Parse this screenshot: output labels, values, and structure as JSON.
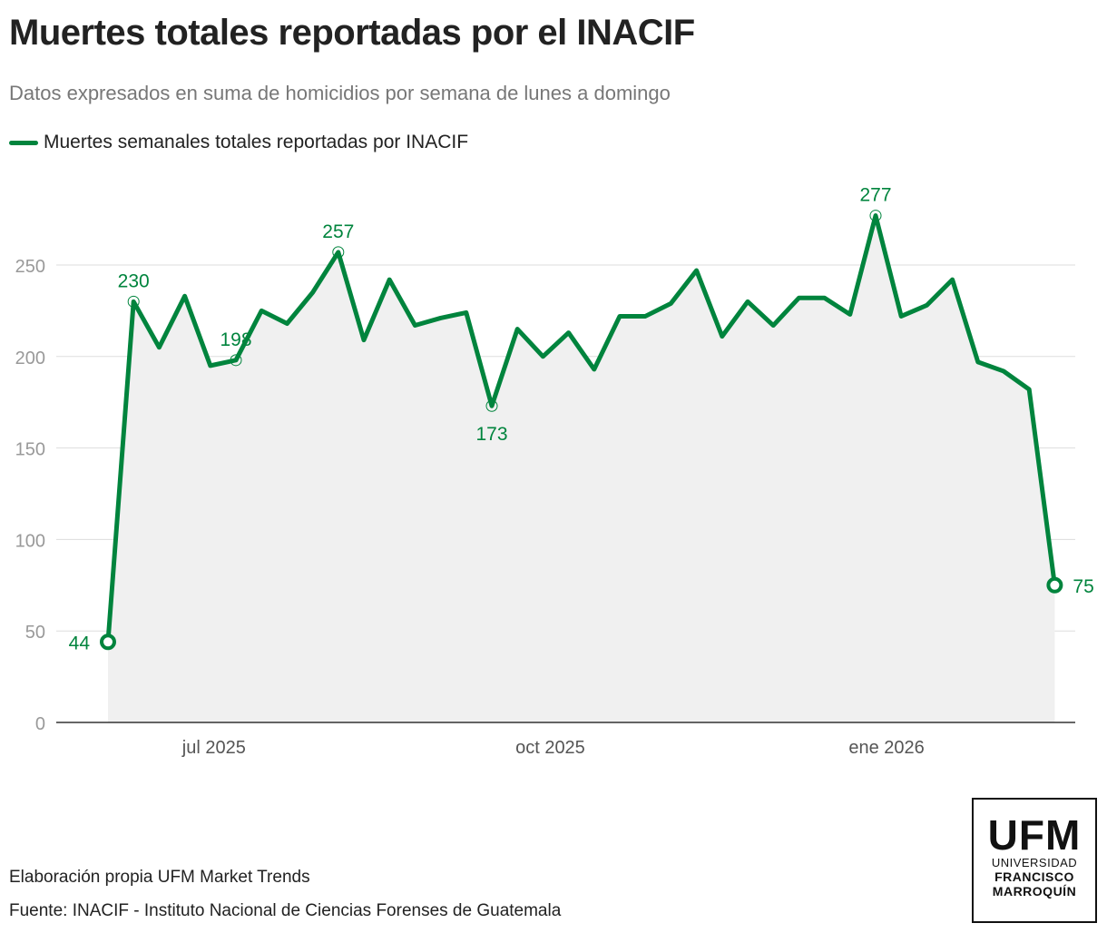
{
  "title": "Muertes totales reportadas por el INACIF",
  "subtitle": "Datos expresados en suma de homicidios por semana de lunes a domingo",
  "footer": {
    "credit": "Elaboración propia UFM Market Trends",
    "source": "Fuente: INACIF - Instituto Nacional de Ciencias Forenses de Guatemala"
  },
  "logo": {
    "line1": "UFM",
    "line2": "UNIVERSIDAD",
    "line3": "FRANCISCO",
    "line4": "MARROQUÍN"
  },
  "chart_data": {
    "type": "line",
    "title": "Muertes totales reportadas por el INACIF",
    "series": [
      {
        "name": "Muertes semanales totales reportadas por INACIF",
        "color": "#00843d",
        "start_date": "2025-06-02",
        "interval": "weekly",
        "values": [
          44,
          230,
          205,
          233,
          195,
          198,
          225,
          218,
          235,
          257,
          209,
          242,
          217,
          221,
          224,
          173,
          215,
          200,
          213,
          193,
          222,
          222,
          229,
          247,
          211,
          230,
          217,
          232,
          232,
          223,
          277,
          222,
          228,
          242,
          197,
          192,
          182,
          75
        ]
      }
    ],
    "annotated_indices": [
      0,
      1,
      5,
      9,
      15,
      30,
      37
    ],
    "ylim": [
      0,
      280
    ],
    "yticks": [
      0,
      50,
      100,
      150,
      200,
      250
    ],
    "xticks": [
      {
        "date": "2025-07-01",
        "label": "jul 2025"
      },
      {
        "date": "2025-10-01",
        "label": "oct 2025"
      },
      {
        "date": "2026-01-01",
        "label": "ene 2026"
      }
    ],
    "grid": true,
    "legend": "top-left"
  }
}
